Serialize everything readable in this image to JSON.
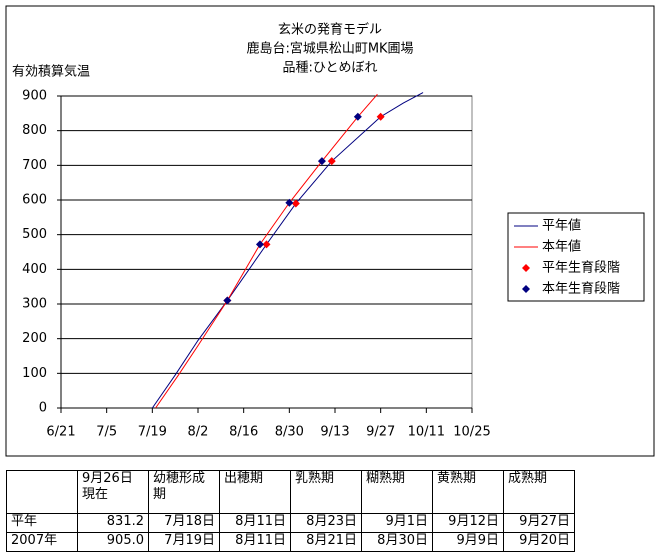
{
  "chart_data": {
    "type": "line",
    "title": [
      "玄米の発育モデル",
      "鹿島台:宮城県松山町MK圃場",
      "品種:ひとめぼれ"
    ],
    "y_label": "有効積算気温",
    "xlim": [
      "6/21",
      "10/25"
    ],
    "xticks": [
      "6/21",
      "7/5",
      "7/19",
      "8/2",
      "8/16",
      "8/30",
      "9/13",
      "9/27",
      "10/11",
      "10/25"
    ],
    "ylim": [
      0,
      900
    ],
    "yticks": [
      0,
      100,
      200,
      300,
      400,
      500,
      600,
      700,
      800,
      900
    ],
    "grid": true,
    "legend": "right",
    "series": [
      {
        "name": "平年値",
        "color": "#000080",
        "type": "line",
        "x": [
          "7/19",
          "7/26",
          "8/2",
          "8/11",
          "8/23",
          "9/1",
          "9/12",
          "9/27",
          "10/4",
          "10/10"
        ],
        "values": [
          0,
          95,
          195,
          310,
          472,
          590,
          712,
          840,
          880,
          910
        ]
      },
      {
        "name": "本年値",
        "color": "#ff0000",
        "type": "line",
        "x": [
          "7/20",
          "7/27",
          "8/2",
          "8/11",
          "8/21",
          "8/30",
          "9/9",
          "9/20",
          "9/26"
        ],
        "values": [
          0,
          95,
          180,
          310,
          472,
          592,
          712,
          840,
          905
        ]
      },
      {
        "name": "平年生育段階",
        "color": "#ff0000",
        "type": "scatter",
        "x": [
          "8/11",
          "8/23",
          "9/1",
          "9/12",
          "9/27"
        ],
        "values": [
          310,
          472,
          590,
          712,
          840
        ]
      },
      {
        "name": "本年生育段階",
        "color": "#000080",
        "type": "scatter",
        "x": [
          "8/11",
          "8/21",
          "8/30",
          "9/9",
          "9/20"
        ],
        "values": [
          310,
          472,
          592,
          712,
          840
        ]
      }
    ]
  },
  "table": {
    "header": [
      "",
      "9月26日\n現在",
      "幼穂形成期",
      "出穂期",
      "乳熟期",
      "糊熟期",
      "黄熟期",
      "成熟期"
    ],
    "rows": [
      [
        "平年",
        "831.2",
        "7月18日",
        "8月11日",
        "8月23日",
        "9月1日",
        "9月12日",
        "9月27日"
      ],
      [
        "2007年",
        "905.0",
        "7月19日",
        "8月11日",
        "8月21日",
        "8月30日",
        "9月9日",
        "9月20日"
      ]
    ]
  }
}
